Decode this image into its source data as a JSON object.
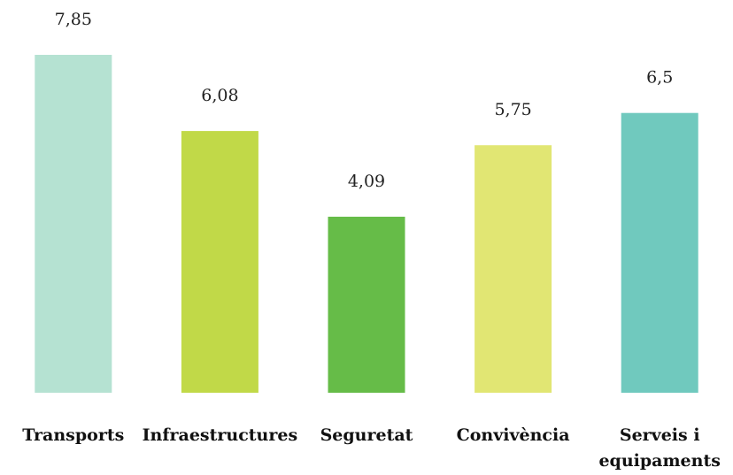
{
  "chart_data": {
    "type": "bar",
    "categories": [
      "Transports",
      "Infraestructures",
      "Seguretat",
      "Convivència",
      "Serveis i equipaments"
    ],
    "category_lines": [
      [
        "Transports"
      ],
      [
        "Infraestructures"
      ],
      [
        "Seguretat"
      ],
      [
        "Convivència"
      ],
      [
        "Serveis i",
        "equipaments"
      ]
    ],
    "values": [
      7.85,
      6.08,
      4.09,
      5.75,
      6.5
    ],
    "value_labels": [
      "7,85",
      "6,08",
      "4,09",
      "5,75",
      "6,5"
    ],
    "colors": [
      "#b5e2d2",
      "#c1d948",
      "#66bc48",
      "#e1e673",
      "#70c9be"
    ],
    "ylim": [
      0,
      7.85
    ],
    "grid": false,
    "legend": "none"
  }
}
